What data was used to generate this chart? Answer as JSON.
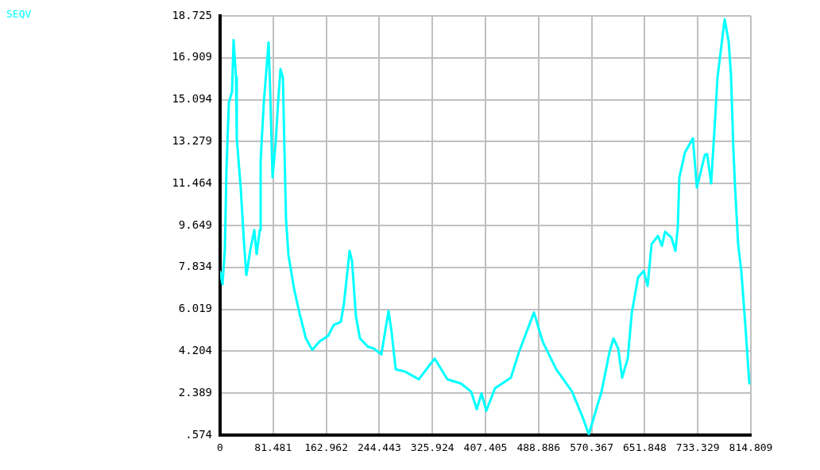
{
  "chart_data": {
    "type": "line",
    "x": [
      0,
      3.7,
      7.3,
      9.8,
      13.4,
      18.3,
      20.7,
      24.4,
      25.6,
      31.7,
      36.6,
      40.3,
      46.4,
      52.5,
      56.1,
      61.0,
      62.2,
      67.1,
      74.4,
      76.8,
      80.5,
      85.4,
      89.0,
      92.7,
      96.4,
      98.8,
      101.2,
      104.9,
      113.4,
      122.0,
      131.7,
      141.5,
      152.5,
      165.9,
      174.4,
      185.4,
      190.3,
      198.8,
      202.5,
      208.6,
      214.7,
      226.9,
      235.4,
      247.6,
      258.6,
      263.5,
      269.6,
      284.2,
      305.0,
      329.3,
      348.9,
      369.6,
      385.5,
      394.0,
      401.3,
      408.6,
      422.1,
      446.4,
      458.6,
      481.8,
      495.2,
      516.0,
      540.4,
      556.2,
      566.0,
      585.5,
      597.7,
      603.8,
      611.1,
      617.2,
      625.8,
      631.9,
      641.6,
      650.2,
      656.3,
      662.4,
      672.1,
      678.2,
      683.1,
      692.8,
      699.0,
      702.6,
      705.0,
      713.6,
      725.8,
      731.9,
      744.1,
      747.7,
      753.8,
      759.9,
      763.6,
      774.6,
      780.7,
      784.3,
      788.0,
      790.4,
      795.3,
      800.2,
      806.3,
      812.4
    ],
    "series": [
      {
        "name": "SEQV",
        "color": "#00ffff",
        "values": [
          7.65,
          7.11,
          8.59,
          12.09,
          14.97,
          15.44,
          17.68,
          16.06,
          13.42,
          11.26,
          8.95,
          7.5,
          8.59,
          9.45,
          8.41,
          9.45,
          12.45,
          14.97,
          17.57,
          15.59,
          11.73,
          13.28,
          14.97,
          16.42,
          16.06,
          12.92,
          9.92,
          8.37,
          6.93,
          5.84,
          4.76,
          4.26,
          4.62,
          4.87,
          5.34,
          5.48,
          6.31,
          8.55,
          8.12,
          5.7,
          4.76,
          4.4,
          4.33,
          4.07,
          5.95,
          4.98,
          3.42,
          3.32,
          2.99,
          3.89,
          2.99,
          2.81,
          2.45,
          1.69,
          2.38,
          1.62,
          2.6,
          3.06,
          4.15,
          5.88,
          4.62,
          3.42,
          2.45,
          1.37,
          0.61,
          2.45,
          4.15,
          4.76,
          4.33,
          3.06,
          3.89,
          5.84,
          7.4,
          7.68,
          7.03,
          8.84,
          9.2,
          8.77,
          9.38,
          9.13,
          8.55,
          9.56,
          11.73,
          12.81,
          13.42,
          11.29,
          12.7,
          12.74,
          11.47,
          14.25,
          16.06,
          18.58,
          17.61,
          16.17,
          12.92,
          11.37,
          8.84,
          7.65,
          5.34,
          2.81
        ]
      }
    ],
    "xlim": [
      0,
      814.809
    ],
    "xticks": [
      0,
      81.481,
      162.962,
      244.443,
      325.924,
      407.405,
      488.886,
      570.367,
      651.848,
      733.329,
      814.809
    ],
    "ylim": [
      0.574,
      18.725
    ],
    "yticks": [
      {
        "value": 0.574,
        "label": ".574"
      },
      2.389,
      4.204,
      6.019,
      7.834,
      9.649,
      11.464,
      13.279,
      15.094,
      16.909,
      18.725
    ],
    "grid": true,
    "legend": "top left",
    "marker": "none",
    "line_style": "solid"
  }
}
